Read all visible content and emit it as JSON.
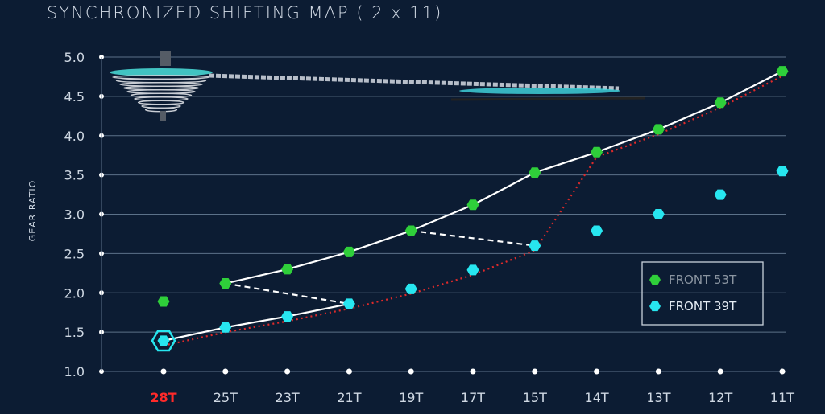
{
  "title": "SYNCHRONIZED SHIFTING MAP ( 2 x 11)",
  "chart_data": {
    "type": "scatter",
    "title": "SYNCHRONIZED SHIFTING MAP ( 2 x 11)",
    "ylabel": "GEAR RATIO",
    "xlabel": "",
    "ylim": [
      1.0,
      5.0
    ],
    "yticks": [
      "5.0",
      "4.5",
      "4.0",
      "3.5",
      "3.0",
      "2.5",
      "2.0",
      "1.5",
      "1.0"
    ],
    "categories": [
      "28T",
      "25T",
      "23T",
      "21T",
      "19T",
      "17T",
      "15T",
      "14T",
      "13T",
      "12T",
      "11T"
    ],
    "highlight_category": "28T",
    "grid": true,
    "legend_position": "bottom-right",
    "series": [
      {
        "name": "FRONT 53T",
        "color": "#2fcf3a",
        "values": [
          1.89,
          2.12,
          2.3,
          2.52,
          2.79,
          3.12,
          3.53,
          3.79,
          4.08,
          4.42,
          4.82
        ]
      },
      {
        "name": "FRONT 39T",
        "color": "#27e6f0",
        "values": [
          1.39,
          1.56,
          1.7,
          1.86,
          2.05,
          2.29,
          2.6,
          2.79,
          3.0,
          3.25,
          3.55
        ]
      }
    ],
    "shift_path": {
      "color": "#ffffff",
      "description_points": [
        {
          "series": 1,
          "index": 0
        },
        {
          "series": 1,
          "index": 1
        },
        {
          "series": 1,
          "index": 2
        },
        {
          "series": 1,
          "index": 3
        },
        {
          "series": 1,
          "index": 4
        }
      ]
    }
  },
  "colors": {
    "background": "#0c1c33",
    "grid": "#5c7189",
    "highlight_tick": "#ff2a2a",
    "trend": "#e02a2a"
  },
  "icons": {
    "drivetrain": "cassette-chain-illustration"
  }
}
